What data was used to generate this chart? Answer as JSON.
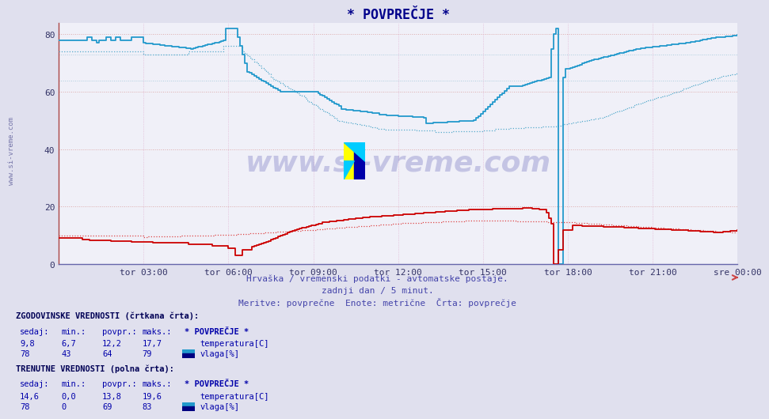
{
  "title": "* POVPREČJE *",
  "title_color": "#00008B",
  "bg_color": "#e0e0ee",
  "plot_bg_color": "#f0f0f8",
  "xlim": [
    0,
    288
  ],
  "ylim": [
    0,
    84
  ],
  "yticks": [
    0,
    20,
    40,
    60,
    80
  ],
  "xtick_labels": [
    "tor 03:00",
    "tor 06:00",
    "tor 09:00",
    "tor 12:00",
    "tor 15:00",
    "tor 18:00",
    "tor 21:00",
    "sre 00:00"
  ],
  "xtick_positions": [
    36,
    72,
    108,
    144,
    180,
    216,
    252,
    288
  ],
  "subtitle1": "Hrvaška / vremenski podatki - avtomatske postaje.",
  "subtitle2": "zadnji dan / 5 minut.",
  "subtitle3": "Meritve: povprečne  Enote: metrične  Črta: povprečje",
  "subtitle_color": "#4444aa",
  "watermark_text": "www.si-vreme.com",
  "watermark_color": "#00008B",
  "watermark_alpha": 0.18,
  "left_label": "www.si-vreme.com",
  "temp_color_solid": "#cc0000",
  "temp_color_dashed": "#dd4444",
  "humid_color_solid": "#2299cc",
  "humid_color_dashed": "#55aacc",
  "legend_hist_label": "ZGODOVINSKE VREDNOSTI (črtkana črta):",
  "legend_curr_label": "TRENUTNE VREDNOSTI (polna črta):",
  "col_headers": [
    "sedaj:",
    "min.:",
    "povpr.:",
    "maks.:",
    "* POVPREČJE *"
  ],
  "hist_temp_row": [
    "9,8",
    "6,7",
    "12,2",
    "17,7",
    "temperatura[C]"
  ],
  "hist_humid_row": [
    "78",
    "43",
    "64",
    "79",
    "vlaga[%]"
  ],
  "curr_temp_row": [
    "14,6",
    "0,0",
    "13,8",
    "19,6",
    "temperatura[C]"
  ],
  "curr_humid_row": [
    "78",
    "0",
    "69",
    "83",
    "vlaga[%]"
  ],
  "temp_icon_color": "#cc0000",
  "humid_icon_color_top": "#2299cc",
  "humid_icon_color_bottom": "#000080"
}
